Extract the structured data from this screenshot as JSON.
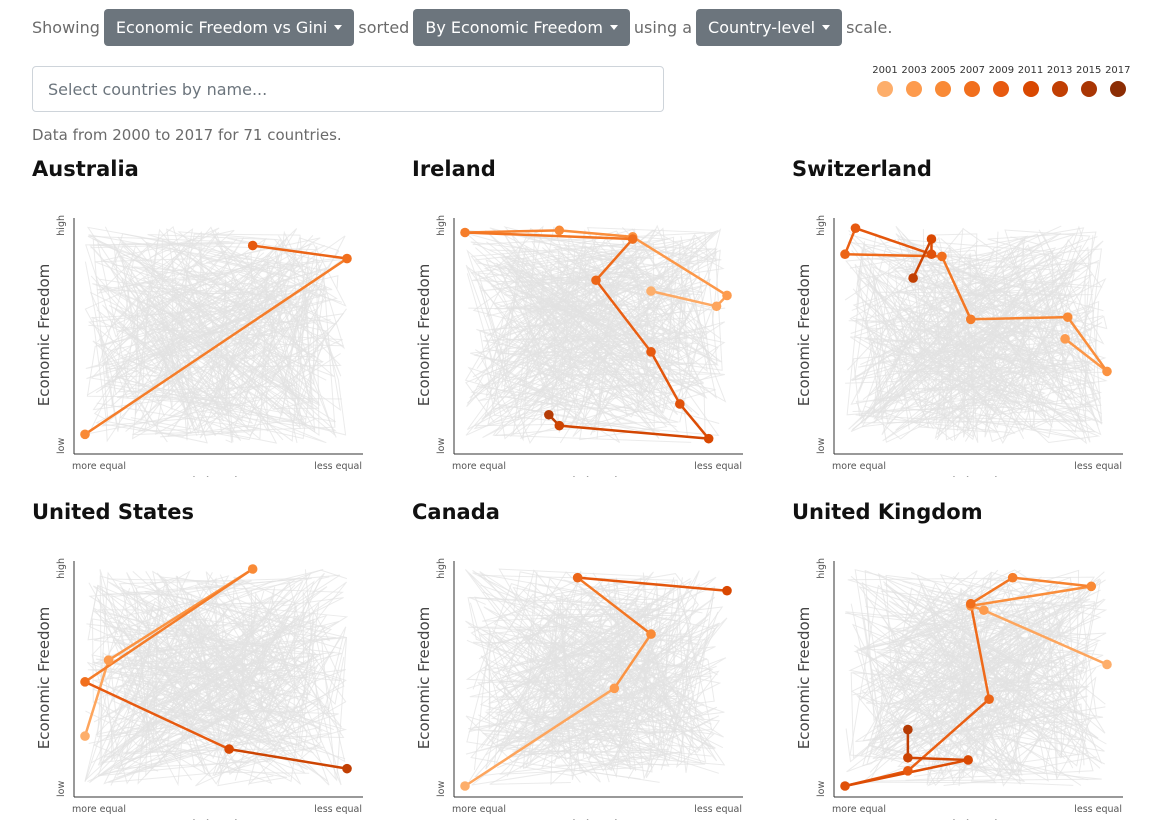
{
  "controls": {
    "showing_label": "Showing",
    "metric_select": "Economic Freedom vs Gini",
    "sorted_label": "sorted",
    "sort_select": "By Economic Freedom",
    "using_label": "using a",
    "scale_select": "Country-level",
    "scale_label": "scale."
  },
  "search": {
    "placeholder": "Select countries by name..."
  },
  "info_text": "Data from 2000 to 2017 for 71 countries.",
  "legend": {
    "years": [
      "2001",
      "2003",
      "2005",
      "2007",
      "2009",
      "2011",
      "2013",
      "2015",
      "2017"
    ],
    "colors": [
      "#fdae6b",
      "#fd9b4e",
      "#f98a36",
      "#f16f1d",
      "#e75a10",
      "#d94801",
      "#c13f03",
      "#a93604",
      "#8c2d04"
    ]
  },
  "axis": {
    "xlabel": "Gini Index",
    "ylabel": "Economic Freedom",
    "x_low": "more equal",
    "x_high": "less equal",
    "y_low": "low",
    "y_high": "high"
  },
  "chart_data": [
    {
      "type": "line",
      "title": "Australia",
      "x_range": [
        0,
        1
      ],
      "y_range": [
        0,
        1
      ],
      "series": [
        {
          "points": [
            {
              "x": 0.0,
              "y": 0.04,
              "year": 2005
            },
            {
              "x": 1.0,
              "y": 0.85,
              "year": 2007
            },
            {
              "x": 0.64,
              "y": 0.91,
              "year": 2009
            }
          ]
        }
      ]
    },
    {
      "type": "line",
      "title": "Ireland",
      "x_range": [
        0,
        1
      ],
      "y_range": [
        0,
        1
      ],
      "series": [
        {
          "points": [
            {
              "x": 0.71,
              "y": 0.7,
              "year": 2001
            },
            {
              "x": 0.96,
              "y": 0.63,
              "year": 2002
            },
            {
              "x": 1.0,
              "y": 0.68,
              "year": 2003
            },
            {
              "x": 0.64,
              "y": 0.95,
              "year": 2004
            },
            {
              "x": 0.36,
              "y": 0.98,
              "year": 2005
            },
            {
              "x": 0.0,
              "y": 0.97,
              "year": 2006
            },
            {
              "x": 0.64,
              "y": 0.94,
              "year": 2007
            },
            {
              "x": 0.5,
              "y": 0.75,
              "year": 2008
            },
            {
              "x": 0.71,
              "y": 0.42,
              "year": 2009
            },
            {
              "x": 0.82,
              "y": 0.18,
              "year": 2010
            },
            {
              "x": 0.93,
              "y": 0.02,
              "year": 2011
            },
            {
              "x": 0.36,
              "y": 0.08,
              "year": 2012
            },
            {
              "x": 0.32,
              "y": 0.13,
              "year": 2014
            }
          ]
        }
      ]
    },
    {
      "type": "line",
      "title": "Switzerland",
      "x_range": [
        0,
        1
      ],
      "y_range": [
        0,
        1
      ],
      "series": [
        {
          "points": [
            {
              "x": 0.84,
              "y": 0.48,
              "year": 2003
            },
            {
              "x": 1.0,
              "y": 0.33,
              "year": 2004
            },
            {
              "x": 0.85,
              "y": 0.58,
              "year": 2005
            },
            {
              "x": 0.48,
              "y": 0.57,
              "year": 2006
            },
            {
              "x": 0.37,
              "y": 0.86,
              "year": 2007
            },
            {
              "x": 0.0,
              "y": 0.87,
              "year": 2008
            },
            {
              "x": 0.04,
              "y": 0.99,
              "year": 2009
            },
            {
              "x": 0.33,
              "y": 0.87,
              "year": 2010
            },
            {
              "x": 0.33,
              "y": 0.94,
              "year": 2011
            },
            {
              "x": 0.26,
              "y": 0.76,
              "year": 2013
            }
          ]
        }
      ]
    },
    {
      "type": "line",
      "title": "United States",
      "x_range": [
        0,
        1
      ],
      "y_range": [
        0,
        1
      ],
      "series": [
        {
          "points": [
            {
              "x": 0.0,
              "y": 0.23,
              "year": 2001
            },
            {
              "x": 0.09,
              "y": 0.58,
              "year": 2003
            },
            {
              "x": 0.64,
              "y": 1.0,
              "year": 2005
            },
            {
              "x": 0.0,
              "y": 0.48,
              "year": 2007
            },
            {
              "x": 0.55,
              "y": 0.17,
              "year": 2011
            },
            {
              "x": 1.0,
              "y": 0.08,
              "year": 2013
            }
          ]
        }
      ]
    },
    {
      "type": "line",
      "title": "Canada",
      "x_range": [
        0,
        1
      ],
      "y_range": [
        0,
        1
      ],
      "series": [
        {
          "points": [
            {
              "x": 0.0,
              "y": 0.0,
              "year": 2001
            },
            {
              "x": 0.57,
              "y": 0.45,
              "year": 2003
            },
            {
              "x": 0.71,
              "y": 0.7,
              "year": 2005
            },
            {
              "x": 0.43,
              "y": 0.96,
              "year": 2008
            },
            {
              "x": 1.0,
              "y": 0.9,
              "year": 2011
            }
          ]
        }
      ]
    },
    {
      "type": "line",
      "title": "United Kingdom",
      "x_range": [
        0,
        1
      ],
      "y_range": [
        0,
        1
      ],
      "series": [
        {
          "points": [
            {
              "x": 1.0,
              "y": 0.56,
              "year": 2001
            },
            {
              "x": 0.53,
              "y": 0.81,
              "year": 2003
            },
            {
              "x": 0.48,
              "y": 0.83,
              "year": 2004
            },
            {
              "x": 0.94,
              "y": 0.92,
              "year": 2005
            },
            {
              "x": 0.64,
              "y": 0.96,
              "year": 2006
            },
            {
              "x": 0.48,
              "y": 0.84,
              "year": 2007
            },
            {
              "x": 0.55,
              "y": 0.4,
              "year": 2008
            },
            {
              "x": 0.24,
              "y": 0.07,
              "year": 2009
            },
            {
              "x": 0.0,
              "y": 0.0,
              "year": 2010
            },
            {
              "x": 0.47,
              "y": 0.12,
              "year": 2011
            },
            {
              "x": 0.24,
              "y": 0.13,
              "year": 2012
            },
            {
              "x": 0.24,
              "y": 0.26,
              "year": 2014
            }
          ]
        }
      ]
    }
  ]
}
